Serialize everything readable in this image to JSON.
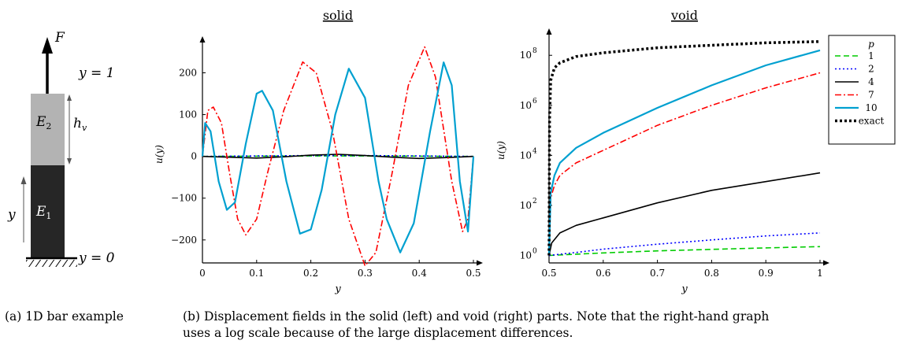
{
  "bar": {
    "force_label": "F",
    "top_label": "y = 1",
    "bottom_label": "y = 0",
    "upper_label": "E",
    "upper_sub": "2",
    "lower_label": "E",
    "lower_sub": "1",
    "height_label": "h",
    "height_sub": "v",
    "axis_label": "y",
    "upper_color": "#b3b3b3",
    "lower_color": "#262626"
  },
  "captions": {
    "a": "(a) 1D bar example",
    "b_line1": "(b) Displacement fields in the solid (left) and void (right) parts. Note that the right-hand graph",
    "b_line2": "uses a log scale because of the large displacement differences."
  },
  "chart_data": [
    {
      "type": "line",
      "title": "solid",
      "xlabel": "y",
      "ylabel": "u(y)",
      "xlim": [
        0,
        0.5
      ],
      "ylim": [
        -255,
        265
      ],
      "x_ticks": [
        0,
        0.1,
        0.2,
        0.3,
        0.4,
        0.5
      ],
      "x_tick_labels": [
        "0",
        "0.1",
        "0.2",
        "0.3",
        "0.4",
        "0.5"
      ],
      "y_ticks": [
        -200,
        -100,
        0,
        100,
        200
      ],
      "y_tick_labels": [
        "−200",
        "−100",
        "0",
        "100",
        "200"
      ],
      "series": [
        {
          "name": "1",
          "color": "#00cc00",
          "dash": "dashed",
          "x": [
            0,
            0.1,
            0.2,
            0.3,
            0.4,
            0.5
          ],
          "y": [
            0,
            0.5,
            1,
            1,
            0.5,
            0
          ]
        },
        {
          "name": "2",
          "color": "#0000ff",
          "dash": "dotted",
          "x": [
            0,
            0.1,
            0.2,
            0.3,
            0.4,
            0.5
          ],
          "y": [
            0,
            1,
            2,
            2,
            1,
            0
          ]
        },
        {
          "name": "4",
          "color": "#000000",
          "dash": "solid",
          "x": [
            0,
            0.05,
            0.1,
            0.15,
            0.2,
            0.25,
            0.3,
            0.35,
            0.4,
            0.45,
            0.5
          ],
          "y": [
            0,
            -2,
            -4,
            -1,
            3,
            5,
            2,
            -2,
            -5,
            -3,
            0
          ]
        },
        {
          "name": "7",
          "color": "#ff0000",
          "dash": "dashdot",
          "x": [
            0,
            0.01,
            0.02,
            0.035,
            0.05,
            0.065,
            0.08,
            0.1,
            0.12,
            0.15,
            0.185,
            0.21,
            0.24,
            0.27,
            0.3,
            0.32,
            0.35,
            0.38,
            0.41,
            0.43,
            0.46,
            0.48,
            0.49,
            0.5
          ],
          "y": [
            0,
            110,
            118,
            80,
            -40,
            -150,
            -188,
            -150,
            -40,
            110,
            226,
            200,
            60,
            -150,
            -262,
            -230,
            -40,
            170,
            262,
            190,
            -60,
            -180,
            -150,
            0
          ]
        },
        {
          "name": "10",
          "color": "#00a0d0",
          "dash": "solid",
          "x": [
            0,
            0.005,
            0.015,
            0.03,
            0.045,
            0.06,
            0.08,
            0.1,
            0.11,
            0.13,
            0.155,
            0.18,
            0.2,
            0.22,
            0.245,
            0.27,
            0.3,
            0.325,
            0.34,
            0.365,
            0.39,
            0.42,
            0.445,
            0.46,
            0.475,
            0.49,
            0.5
          ],
          "y": [
            0,
            80,
            60,
            -60,
            -128,
            -110,
            30,
            150,
            157,
            110,
            -60,
            -185,
            -175,
            -80,
            100,
            210,
            140,
            -60,
            -150,
            -230,
            -160,
            60,
            225,
            170,
            -60,
            -180,
            0
          ]
        }
      ]
    },
    {
      "type": "line",
      "title": "void",
      "xlabel": "y",
      "ylabel": "u(y)",
      "log_y": true,
      "xlim": [
        0.5,
        1
      ],
      "ylim_log10": [
        -0.3,
        8.7
      ],
      "x_ticks": [
        0.5,
        0.6,
        0.7,
        0.8,
        0.9,
        1
      ],
      "x_tick_labels": [
        "0.5",
        "0.6",
        "0.7",
        "0.8",
        "0.9",
        "1"
      ],
      "y_ticks_log10": [
        0,
        2,
        4,
        6,
        8
      ],
      "y_tick_labels": [
        "10",
        "10",
        "10",
        "10",
        "10"
      ],
      "y_tick_exponents": [
        "0",
        "2",
        "4",
        "6",
        "8"
      ],
      "legend": {
        "title": "p",
        "placement": "top-right, outside"
      },
      "series": [
        {
          "name": "1",
          "color": "#00cc00",
          "dash": "dashed",
          "x": [
            0.5,
            0.55,
            0.6,
            0.7,
            0.8,
            0.9,
            1.0
          ],
          "log10_y": [
            0,
            0.05,
            0.1,
            0.18,
            0.24,
            0.3,
            0.35
          ]
        },
        {
          "name": "2",
          "color": "#0000ff",
          "dash": "dotted",
          "x": [
            0.5,
            0.55,
            0.6,
            0.7,
            0.8,
            0.9,
            1.0
          ],
          "log10_y": [
            0,
            0.12,
            0.25,
            0.45,
            0.62,
            0.78,
            0.9
          ]
        },
        {
          "name": "4",
          "color": "#000000",
          "dash": "solid",
          "x": [
            0.5,
            0.505,
            0.52,
            0.55,
            0.6,
            0.7,
            0.8,
            0.9,
            1.0
          ],
          "log10_y": [
            0,
            0.5,
            0.9,
            1.2,
            1.5,
            2.1,
            2.6,
            2.95,
            3.3
          ]
        },
        {
          "name": "7",
          "color": "#ff0000",
          "dash": "dashdot",
          "x": [
            0.5,
            0.503,
            0.51,
            0.52,
            0.55,
            0.6,
            0.7,
            0.8,
            0.9,
            1.0
          ],
          "log10_y": [
            0,
            2.3,
            2.8,
            3.2,
            3.7,
            4.2,
            5.2,
            6.0,
            6.7,
            7.3
          ]
        },
        {
          "name": "10",
          "color": "#00a0d0",
          "dash": "solid",
          "x": [
            0.5,
            0.503,
            0.51,
            0.52,
            0.55,
            0.6,
            0.7,
            0.8,
            0.9,
            1.0
          ],
          "log10_y": [
            0,
            2.5,
            3.2,
            3.7,
            4.3,
            4.9,
            5.9,
            6.8,
            7.6,
            8.2
          ]
        },
        {
          "name": "exact",
          "color": "#000000",
          "dash": "dotted-thick",
          "x": [
            0.5,
            0.501,
            0.503,
            0.51,
            0.52,
            0.55,
            0.6,
            0.7,
            0.8,
            0.9,
            1.0
          ],
          "log10_y": [
            0,
            5.5,
            7.0,
            7.5,
            7.7,
            7.95,
            8.1,
            8.3,
            8.4,
            8.5,
            8.55
          ]
        }
      ]
    }
  ]
}
